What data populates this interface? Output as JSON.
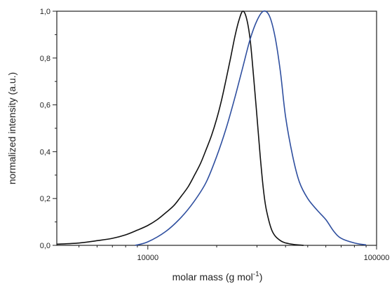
{
  "chart_data": {
    "type": "line",
    "xlabel": {
      "text": "molar mass (g mol",
      "sup": "-1",
      "suffix": ")"
    },
    "ylabel": "normalized intensity (a.u.)",
    "x_scale": "log",
    "xlim": [
      4000,
      100000
    ],
    "ylim": [
      0,
      1
    ],
    "x_ticks": [
      {
        "value": 10000,
        "label": "10000"
      },
      {
        "value": 100000,
        "label": "100000"
      }
    ],
    "x_minor_ticks": [
      5000,
      6000,
      7000,
      8000,
      9000,
      20000,
      30000,
      40000,
      50000,
      60000,
      70000,
      80000,
      90000
    ],
    "y_ticks": [
      {
        "value": 0.0,
        "label": "0,0"
      },
      {
        "value": 0.2,
        "label": "0,2"
      },
      {
        "value": 0.4,
        "label": "0,4"
      },
      {
        "value": 0.6,
        "label": "0,6"
      },
      {
        "value": 0.8,
        "label": "0,8"
      },
      {
        "value": 1.0,
        "label": "1,0"
      }
    ],
    "y_minor_ticks": [
      0.1,
      0.3,
      0.5,
      0.7,
      0.9
    ],
    "grid": false,
    "series": [
      {
        "color": "#111111",
        "points": [
          [
            4000,
            0.005
          ],
          [
            5000,
            0.01
          ],
          [
            6000,
            0.02
          ],
          [
            7000,
            0.03
          ],
          [
            8000,
            0.045
          ],
          [
            9000,
            0.065
          ],
          [
            10000,
            0.085
          ],
          [
            11000,
            0.11
          ],
          [
            12000,
            0.14
          ],
          [
            13000,
            0.17
          ],
          [
            14000,
            0.21
          ],
          [
            15000,
            0.25
          ],
          [
            16000,
            0.3
          ],
          [
            17000,
            0.35
          ],
          [
            18000,
            0.41
          ],
          [
            19000,
            0.47
          ],
          [
            20000,
            0.54
          ],
          [
            21000,
            0.62
          ],
          [
            22000,
            0.71
          ],
          [
            23000,
            0.8
          ],
          [
            24000,
            0.89
          ],
          [
            25000,
            0.96
          ],
          [
            26000,
            1.0
          ],
          [
            27000,
            0.97
          ],
          [
            28000,
            0.88
          ],
          [
            29000,
            0.72
          ],
          [
            30000,
            0.55
          ],
          [
            31000,
            0.38
          ],
          [
            32000,
            0.24
          ],
          [
            33000,
            0.15
          ],
          [
            35000,
            0.06
          ],
          [
            38000,
            0.02
          ],
          [
            42000,
            0.006
          ],
          [
            48000,
            0.0
          ]
        ]
      },
      {
        "color": "#2f4f9f",
        "points": [
          [
            8800,
            0.0
          ],
          [
            10000,
            0.015
          ],
          [
            12000,
            0.06
          ],
          [
            14000,
            0.12
          ],
          [
            16000,
            0.19
          ],
          [
            18000,
            0.27
          ],
          [
            20000,
            0.38
          ],
          [
            22000,
            0.5
          ],
          [
            24000,
            0.63
          ],
          [
            26000,
            0.76
          ],
          [
            28000,
            0.88
          ],
          [
            30000,
            0.96
          ],
          [
            32000,
            1.0
          ],
          [
            34000,
            0.98
          ],
          [
            36000,
            0.89
          ],
          [
            38000,
            0.74
          ],
          [
            40000,
            0.55
          ],
          [
            43000,
            0.38
          ],
          [
            46000,
            0.27
          ],
          [
            50000,
            0.2
          ],
          [
            55000,
            0.15
          ],
          [
            60000,
            0.11
          ],
          [
            65000,
            0.06
          ],
          [
            70000,
            0.03
          ],
          [
            80000,
            0.01
          ],
          [
            90000,
            0.002
          ]
        ]
      }
    ]
  }
}
